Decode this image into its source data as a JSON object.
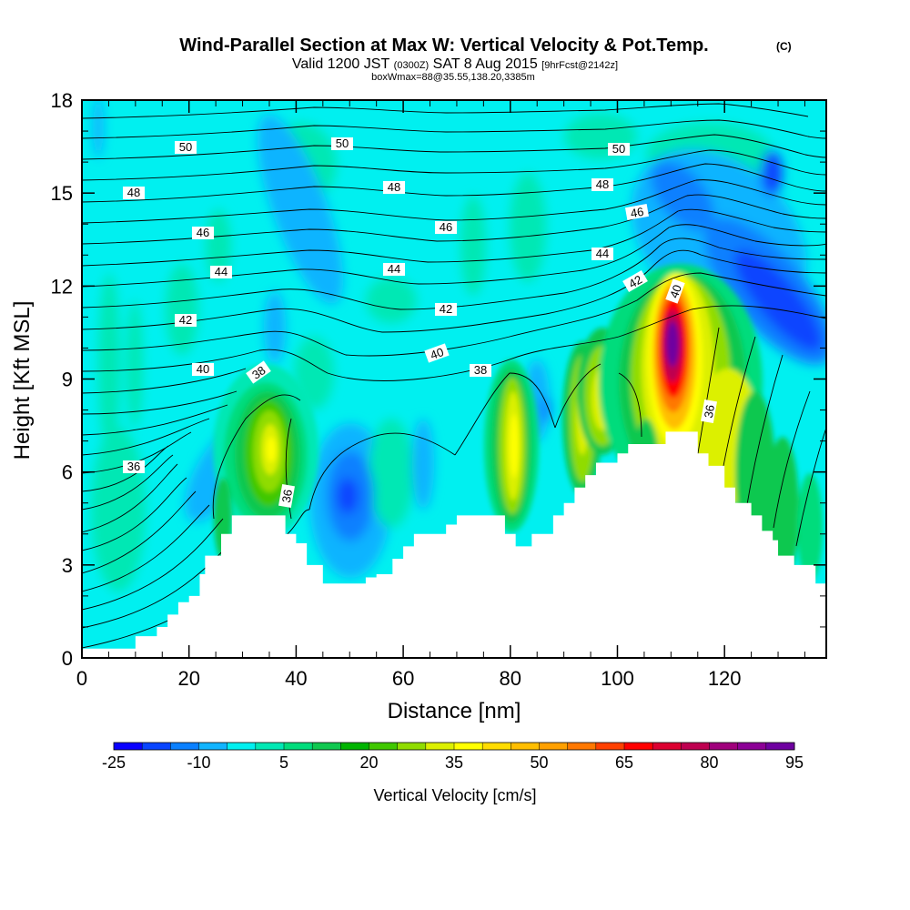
{
  "chart_data": {
    "type": "contour-section",
    "title": "Wind-Parallel Section at Max W: Vertical Velocity & Pot.Temp.",
    "title_mark": "(C)",
    "subtitle_main": "Valid 1200 JST",
    "subtitle_utc": "(0300Z)",
    "subtitle_date": "SAT 8 Aug 2015",
    "subtitle_fcst": "[9hrFcst@2142z]",
    "subtitle2": "boxWmax=88@35.55,138.20,3385m",
    "xlabel": "Distance [nm]",
    "ylabel": "Height [Kft MSL]",
    "xlim": [
      0,
      139
    ],
    "ylim": [
      0,
      18
    ],
    "xticks": [
      "0",
      "20",
      "40",
      "60",
      "80",
      "100",
      "120"
    ],
    "yticks": [
      "0",
      "3",
      "6",
      "9",
      "12",
      "15",
      "18"
    ],
    "colorbar": {
      "label": "Vertical Velocity [cm/s]",
      "tick_labels": [
        "-25",
        "-10",
        "5",
        "20",
        "35",
        "50",
        "65",
        "80",
        "95"
      ],
      "colors": [
        "#0a00ff",
        "#0844ff",
        "#0a80ff",
        "#10b4ff",
        "#00f0f0",
        "#00e8b4",
        "#00dc7c",
        "#10c850",
        "#00b400",
        "#40c800",
        "#90dc00",
        "#dcf000",
        "#ffff00",
        "#ffdc00",
        "#ffbe00",
        "#ffa000",
        "#ff7800",
        "#ff4000",
        "#ff0000",
        "#dc0030",
        "#be0050",
        "#a0007c",
        "#8c0096",
        "#6e00a0"
      ]
    },
    "theta_contour_labels": [
      "36",
      "36",
      "36",
      "38",
      "38",
      "40",
      "40",
      "40",
      "42",
      "42",
      "42",
      "44",
      "44",
      "44",
      "46",
      "46",
      "46",
      "48",
      "48",
      "48",
      "50",
      "50",
      "50"
    ],
    "terrain_height_kft": [
      [
        0,
        0.3
      ],
      [
        10,
        0.7
      ],
      [
        14,
        1.0
      ],
      [
        16,
        1.4
      ],
      [
        18,
        1.8
      ],
      [
        20,
        2.0
      ],
      [
        22,
        2.7
      ],
      [
        23,
        3.3
      ],
      [
        26,
        4.0
      ],
      [
        28,
        4.6
      ],
      [
        38,
        4.6
      ],
      [
        38,
        4.0
      ],
      [
        40,
        3.7
      ],
      [
        42,
        3.0
      ],
      [
        45,
        2.4
      ],
      [
        52,
        2.4
      ],
      [
        53,
        2.6
      ],
      [
        55,
        2.7
      ],
      [
        58,
        3.2
      ],
      [
        60,
        3.6
      ],
      [
        62,
        4.0
      ],
      [
        68,
        4.3
      ],
      [
        70,
        4.6
      ],
      [
        78,
        4.6
      ],
      [
        79,
        4.0
      ],
      [
        81,
        3.6
      ],
      [
        84,
        4.0
      ],
      [
        88,
        4.6
      ],
      [
        90,
        5.0
      ],
      [
        92,
        5.5
      ],
      [
        94,
        5.9
      ],
      [
        96,
        6.3
      ],
      [
        100,
        6.6
      ],
      [
        102,
        6.9
      ],
      [
        108,
        6.9
      ],
      [
        109,
        7.3
      ],
      [
        114,
        7.3
      ],
      [
        115,
        6.6
      ],
      [
        117,
        6.2
      ],
      [
        120,
        5.5
      ],
      [
        122,
        5.0
      ],
      [
        125,
        4.6
      ],
      [
        127,
        4.1
      ],
      [
        129,
        3.8
      ],
      [
        130,
        3.3
      ],
      [
        133,
        3.0
      ],
      [
        136,
        3.0
      ],
      [
        137,
        2.4
      ],
      [
        139,
        2.4
      ]
    ]
  }
}
